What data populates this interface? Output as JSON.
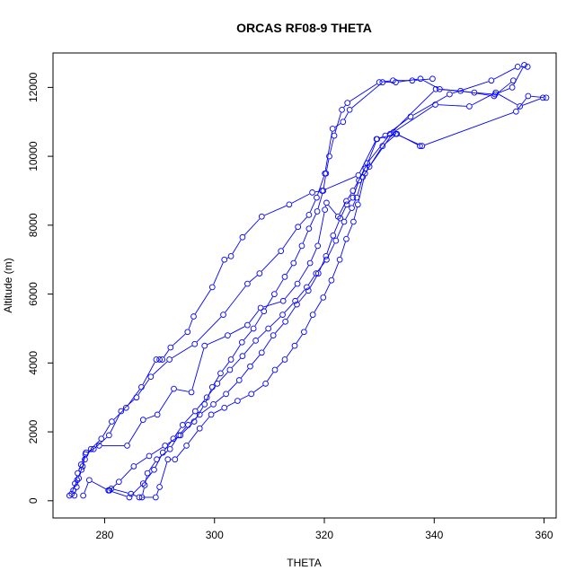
{
  "chart_data": {
    "type": "line",
    "title": "ORCAS RF08-9 THETA",
    "xlabel": "THETA",
    "ylabel": "Altitude (m)",
    "xlim": [
      270.6,
      362.2
    ],
    "ylim": [
      -500,
      13000
    ],
    "xticks": [
      280,
      300,
      320,
      340,
      360
    ],
    "yticks": [
      0,
      2000,
      4000,
      6000,
      8000,
      10000,
      12000
    ],
    "grid": false,
    "legend": "none",
    "marker": "open-circle",
    "colors": {
      "series": "#0000ff",
      "axis": "#000000"
    },
    "series": [
      {
        "values": [
          [
            274.5,
            150
          ],
          [
            274.9,
            400
          ],
          [
            275.3,
            650
          ],
          [
            275.8,
            900
          ],
          [
            276.4,
            1200
          ],
          [
            277.5,
            1500
          ],
          [
            279.4,
            1800
          ],
          [
            281.3,
            2300
          ],
          [
            283.9,
            2700
          ],
          [
            286.7,
            3300
          ],
          [
            289.4,
            4100
          ],
          [
            290.0,
            4100
          ],
          [
            290.5,
            4100
          ],
          [
            292.0,
            4450
          ],
          [
            295.1,
            4900
          ],
          [
            296.2,
            5350
          ],
          [
            299.6,
            6200
          ],
          [
            301.8,
            7000
          ],
          [
            303.0,
            7100
          ],
          [
            305.1,
            7650
          ],
          [
            308.6,
            8250
          ],
          [
            313.6,
            8600
          ],
          [
            317.8,
            8950
          ],
          [
            319.6,
            9000
          ],
          [
            326.2,
            9450
          ],
          [
            329.5,
            10500
          ],
          [
            333.0,
            10650
          ],
          [
            337.8,
            10300
          ],
          [
            354.9,
            11300
          ],
          [
            357.1,
            11750
          ],
          [
            360.4,
            11700
          ]
        ]
      },
      {
        "values": [
          [
            274.0,
            200
          ],
          [
            274.6,
            500
          ],
          [
            275.1,
            800
          ],
          [
            275.7,
            1050
          ],
          [
            276.5,
            1350
          ],
          [
            278.0,
            1500
          ],
          [
            280.8,
            1900
          ],
          [
            283.0,
            2600
          ],
          [
            285.8,
            3000
          ],
          [
            288.4,
            3600
          ],
          [
            291.8,
            4100
          ],
          [
            296.4,
            4550
          ],
          [
            301.6,
            5400
          ],
          [
            306.0,
            6300
          ],
          [
            308.2,
            6600
          ],
          [
            312.1,
            7250
          ],
          [
            315.2,
            7950
          ],
          [
            317.2,
            8300
          ],
          [
            318.6,
            8800
          ],
          [
            320.1,
            9500
          ],
          [
            321.5,
            10800
          ],
          [
            323.4,
            11000
          ],
          [
            324.6,
            11350
          ],
          [
            330.6,
            12150
          ],
          [
            333.0,
            12150
          ],
          [
            337.5,
            12250
          ],
          [
            341.0,
            11950
          ],
          [
            347.3,
            11850
          ],
          [
            351.1,
            11800
          ],
          [
            354.2,
            12000
          ],
          [
            356.4,
            12650
          ]
        ]
      },
      {
        "values": [
          [
            273.6,
            150
          ],
          [
            274.3,
            300
          ],
          [
            275.0,
            600
          ],
          [
            276.0,
            1000
          ],
          [
            276.6,
            1400
          ],
          [
            279.0,
            1600
          ],
          [
            284.1,
            1600
          ],
          [
            287.0,
            2350
          ],
          [
            289.6,
            2500
          ],
          [
            292.6,
            3250
          ],
          [
            295.8,
            3150
          ],
          [
            298.2,
            4500
          ],
          [
            302.4,
            4800
          ],
          [
            306.0,
            5100
          ],
          [
            308.4,
            5600
          ],
          [
            312.5,
            5800
          ],
          [
            315.1,
            6300
          ],
          [
            317.4,
            6900
          ],
          [
            318.8,
            7400
          ],
          [
            320.1,
            8450
          ],
          [
            320.4,
            8650
          ],
          [
            322.5,
            8250
          ],
          [
            324.0,
            8700
          ],
          [
            325.2,
            9000
          ],
          [
            327.5,
            9650
          ],
          [
            329.6,
            10500
          ],
          [
            331.1,
            10600
          ],
          [
            335.7,
            11150
          ],
          [
            342.8,
            11800
          ],
          [
            350.4,
            12200
          ],
          [
            355.2,
            12600
          ],
          [
            357.0,
            12600
          ]
        ]
      },
      {
        "values": [
          [
            276.1,
            150
          ],
          [
            277.2,
            600
          ],
          [
            280.7,
            300
          ],
          [
            284.5,
            100
          ],
          [
            287.0,
            500
          ],
          [
            289.0,
            900
          ],
          [
            290.6,
            1400
          ],
          [
            292.5,
            1800
          ],
          [
            294.2,
            2200
          ],
          [
            296.5,
            2600
          ],
          [
            298.6,
            3000
          ],
          [
            300.5,
            3400
          ],
          [
            302.8,
            3800
          ],
          [
            305.1,
            4200
          ],
          [
            307.5,
            4650
          ],
          [
            309.8,
            5000
          ],
          [
            312.4,
            5400
          ],
          [
            314.7,
            5800
          ],
          [
            316.8,
            6200
          ],
          [
            318.5,
            6600
          ],
          [
            320.4,
            7000
          ],
          [
            322.1,
            7550
          ],
          [
            323.6,
            8100
          ],
          [
            325.0,
            8500
          ],
          [
            325.9,
            8800
          ],
          [
            327.0,
            9400
          ],
          [
            328.2,
            9700
          ],
          [
            332.6,
            10700
          ],
          [
            340.2,
            11500
          ],
          [
            346.4,
            11450
          ],
          [
            351.2,
            11850
          ],
          [
            355.6,
            11450
          ],
          [
            359.8,
            11700
          ]
        ]
      },
      {
        "values": [
          [
            280.7,
            300
          ],
          [
            281.2,
            350
          ],
          [
            284.8,
            200
          ],
          [
            286.3,
            100
          ],
          [
            289.3,
            100
          ],
          [
            290.0,
            400
          ],
          [
            291.5,
            1200
          ],
          [
            292.8,
            1200
          ],
          [
            294.9,
            1600
          ],
          [
            297.3,
            2100
          ],
          [
            299.4,
            2500
          ],
          [
            301.8,
            2700
          ],
          [
            304.2,
            2900
          ],
          [
            306.7,
            3100
          ],
          [
            309.3,
            3400
          ],
          [
            311.0,
            3800
          ],
          [
            312.8,
            4100
          ],
          [
            314.6,
            4500
          ],
          [
            316.3,
            4900
          ],
          [
            317.9,
            5400
          ],
          [
            319.8,
            5900
          ],
          [
            321.3,
            6400
          ],
          [
            322.8,
            7000
          ],
          [
            324.0,
            7600
          ],
          [
            325.3,
            8100
          ],
          [
            326.1,
            8600
          ],
          [
            327.4,
            9500
          ],
          [
            330.6,
            10300
          ],
          [
            333.2,
            10650
          ],
          [
            337.4,
            10300
          ]
        ]
      },
      {
        "values": [
          [
            286.8,
            100
          ],
          [
            287.3,
            450
          ],
          [
            287.8,
            800
          ],
          [
            289.5,
            1200
          ],
          [
            291.9,
            1500
          ],
          [
            293.5,
            1900
          ],
          [
            295.2,
            2200
          ],
          [
            297.3,
            2500
          ],
          [
            299.8,
            2800
          ],
          [
            302.1,
            3100
          ],
          [
            304.5,
            3500
          ],
          [
            306.5,
            3900
          ],
          [
            308.6,
            4300
          ],
          [
            310.7,
            4800
          ],
          [
            312.9,
            5200
          ],
          [
            315.0,
            5700
          ],
          [
            317.1,
            6100
          ],
          [
            318.9,
            6600
          ],
          [
            320.3,
            7100
          ],
          [
            321.6,
            7700
          ],
          [
            322.9,
            8200
          ],
          [
            324.1,
            8600
          ],
          [
            325.2,
            8800
          ],
          [
            326.3,
            9300
          ],
          [
            327.8,
            9800
          ],
          [
            332.0,
            10650
          ],
          [
            340.3,
            11950
          ],
          [
            344.8,
            11900
          ],
          [
            350.9,
            11750
          ],
          [
            354.4,
            12200
          ]
        ]
      },
      {
        "values": [
          [
            280.9,
            300
          ],
          [
            282.6,
            550
          ],
          [
            285.3,
            1000
          ],
          [
            288.1,
            1300
          ],
          [
            291.0,
            1600
          ],
          [
            293.8,
            1900
          ],
          [
            296.3,
            2300
          ],
          [
            298.2,
            2800
          ],
          [
            299.6,
            3300
          ],
          [
            301.1,
            3700
          ],
          [
            303.0,
            4100
          ],
          [
            305.0,
            4600
          ],
          [
            307.1,
            5000
          ],
          [
            309.0,
            5500
          ],
          [
            310.9,
            6000
          ],
          [
            312.8,
            6500
          ],
          [
            314.4,
            6900
          ],
          [
            315.9,
            7400
          ],
          [
            317.2,
            7900
          ],
          [
            318.7,
            8400
          ],
          [
            319.8,
            9000
          ],
          [
            320.3,
            9500
          ],
          [
            320.9,
            10000
          ],
          [
            321.8,
            10600
          ],
          [
            323.2,
            11350
          ],
          [
            324.2,
            11550
          ],
          [
            330.0,
            12150
          ],
          [
            332.5,
            12200
          ],
          [
            336.0,
            12200
          ],
          [
            339.7,
            12250
          ]
        ]
      }
    ]
  }
}
